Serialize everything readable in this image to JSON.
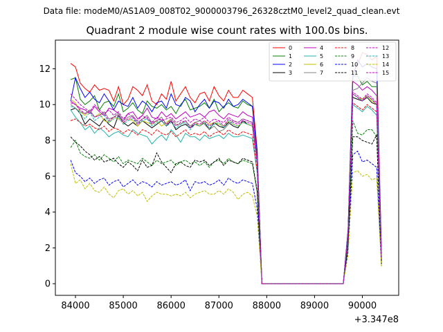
{
  "figure": {
    "suptitle": "Data file: modeM0/AS1A09_008T02_9000003796_26328cztM0_level2_quad_clean.evt",
    "title": "Quadrant 2 module wise count rates with 100.0s bins.",
    "offset_text": "+3.347e8"
  },
  "chart_data": {
    "type": "line",
    "title": "Quadrant 2 module wise count rates with 100.0s bins.",
    "xlabel": "",
    "ylabel": "",
    "x_offset": 334700000,
    "xlim": [
      83580,
      90760
    ],
    "ylim": [
      -0.65,
      13.6
    ],
    "xticks": [
      84000,
      85000,
      86000,
      87000,
      88000,
      89000,
      90000
    ],
    "yticks": [
      0,
      2,
      4,
      6,
      8,
      10,
      12
    ],
    "grid": false,
    "legend": {
      "placement": "top-right",
      "columns": 4
    },
    "x": [
      83900,
      84000,
      84100,
      84200,
      84300,
      84400,
      84500,
      84600,
      84700,
      84800,
      84900,
      85000,
      85100,
      85200,
      85300,
      85400,
      85500,
      85600,
      85700,
      85800,
      85900,
      86000,
      86100,
      86200,
      86300,
      86400,
      86500,
      86600,
      86700,
      86800,
      86900,
      87000,
      87100,
      87200,
      87300,
      87400,
      87500,
      87600,
      87700,
      87800,
      87900,
      88000,
      88100,
      88200,
      88300,
      88400,
      88500,
      88600,
      88700,
      88800,
      88900,
      89000,
      89100,
      89200,
      89300,
      89400,
      89500,
      89600,
      89700,
      89800,
      89900,
      90000,
      90100,
      90200,
      90300,
      90400
    ],
    "series": [
      {
        "name": "0",
        "color": "#ff0000",
        "dash": false,
        "values": [
          12.3,
          12.1,
          11.2,
          10.9,
          10.7,
          11.1,
          10.8,
          10.9,
          10.8,
          10.2,
          11.0,
          10.0,
          10.3,
          11.0,
          10.8,
          10.5,
          11.1,
          10.2,
          10.0,
          10.6,
          10.3,
          11.3,
          10.2,
          10.6,
          11.0,
          10.4,
          10.1,
          10.6,
          10.7,
          10.2,
          11.0,
          10.5,
          10.2,
          10.8,
          10.4,
          10.4,
          10.8,
          10.6,
          10.4,
          7.5,
          0,
          0,
          0,
          0,
          0,
          0,
          0,
          0,
          0,
          0,
          0,
          0,
          0,
          0,
          0,
          0,
          0,
          0,
          3,
          11.8,
          12.2,
          12.9,
          12.8,
          12.5,
          12.7,
          1.8
        ]
      },
      {
        "name": "1",
        "color": "#008000",
        "dash": false,
        "values": [
          11.4,
          11.5,
          10.3,
          10.0,
          10.2,
          10.5,
          9.7,
          10.1,
          10.2,
          9.9,
          10.6,
          9.6,
          9.8,
          10.1,
          9.7,
          9.5,
          10.2,
          9.9,
          9.8,
          10.0,
          9.7,
          9.9,
          9.5,
          10.0,
          10.3,
          9.7,
          9.8,
          9.9,
          10.1,
          9.8,
          10.3,
          9.6,
          9.9,
          10.1,
          9.9,
          9.8,
          10.2,
          10.0,
          9.9,
          7.3,
          0,
          0,
          0,
          0,
          0,
          0,
          0,
          0,
          0,
          0,
          0,
          0,
          0,
          0,
          0,
          0,
          0,
          0,
          2.9,
          11.6,
          11.6,
          11.1,
          11.3,
          11.0,
          11.0,
          1.5
        ]
      },
      {
        "name": "2",
        "color": "#0000ff",
        "dash": false,
        "values": [
          10.2,
          11.5,
          10.9,
          10.4,
          10.7,
          10.3,
          10.1,
          10.6,
          10.2,
          9.7,
          10.2,
          10.0,
          9.9,
          10.4,
          9.8,
          10.2,
          10.0,
          9.6,
          10.1,
          10.2,
          9.8,
          10.6,
          10.0,
          9.9,
          10.4,
          10.2,
          9.6,
          10.0,
          10.3,
          9.8,
          10.2,
          10.1,
          9.8,
          10.3,
          9.9,
          10.0,
          10.3,
          10.1,
          9.9,
          7.4,
          0,
          0,
          0,
          0,
          0,
          0,
          0,
          0,
          0,
          0,
          0,
          0,
          0,
          0,
          0,
          0,
          0,
          0,
          3.0,
          11.5,
          12.5,
          12.1,
          12.3,
          12.1,
          12.0,
          1.7
        ]
      },
      {
        "name": "3",
        "color": "#000000",
        "dash": false,
        "values": [
          9.7,
          9.8,
          9.5,
          8.9,
          9.2,
          9.0,
          8.8,
          9.2,
          8.9,
          8.7,
          9.4,
          9.0,
          8.8,
          9.0,
          8.8,
          9.1,
          8.9,
          8.7,
          8.9,
          9.1,
          8.8,
          9.1,
          8.6,
          8.8,
          8.9,
          8.7,
          8.9,
          8.8,
          9.0,
          8.6,
          9.0,
          8.8,
          8.7,
          9.0,
          8.8,
          8.7,
          9.1,
          8.9,
          8.8,
          6.8,
          0,
          0,
          0,
          0,
          0,
          0,
          0,
          0,
          0,
          0,
          0,
          0,
          0,
          0,
          0,
          0,
          0,
          0,
          2.7,
          10.4,
          10.3,
          10.2,
          10.4,
          10.1,
          10.0,
          1.4
        ]
      },
      {
        "name": "4",
        "color": "#bf00bf",
        "dash": false,
        "values": [
          10.2,
          10.0,
          9.8,
          9.7,
          9.5,
          9.9,
          9.6,
          9.4,
          9.8,
          9.7,
          9.5,
          9.1,
          9.5,
          9.6,
          9.2,
          9.4,
          9.8,
          9.3,
          9.2,
          9.6,
          9.3,
          9.5,
          9.2,
          9.4,
          9.6,
          9.3,
          9.4,
          9.5,
          9.3,
          9.6,
          9.7,
          9.4,
          9.2,
          9.5,
          9.4,
          9.3,
          9.6,
          9.4,
          9.3,
          7.0,
          0,
          0,
          0,
          0,
          0,
          0,
          0,
          0,
          0,
          0,
          0,
          0,
          0,
          0,
          0,
          0,
          0,
          0,
          2.8,
          11.3,
          11.1,
          10.8,
          11.0,
          10.8,
          10.5,
          1.5
        ]
      },
      {
        "name": "5",
        "color": "#20b2aa",
        "dash": false,
        "values": [
          9.7,
          9.3,
          9.0,
          8.6,
          8.8,
          8.4,
          8.7,
          8.5,
          8.2,
          8.4,
          8.5,
          8.3,
          8.2,
          8.6,
          8.4,
          8.3,
          8.2,
          7.8,
          8.1,
          8.3,
          8.0,
          8.6,
          8.3,
          7.9,
          8.4,
          8.2,
          8.2,
          8.0,
          8.3,
          8.1,
          8.2,
          8.3,
          8.1,
          8.4,
          8.2,
          8.2,
          8.3,
          8.2,
          8.1,
          6.2,
          0,
          0,
          0,
          0,
          0,
          0,
          0,
          0,
          0,
          0,
          0,
          0,
          0,
          0,
          0,
          0,
          0,
          0,
          2.5,
          10.0,
          9.8,
          9.6,
          9.9,
          9.7,
          9.4,
          1.3
        ]
      },
      {
        "name": "6",
        "color": "#bfbf00",
        "dash": false,
        "values": [
          10.3,
          10.1,
          9.6,
          9.4,
          9.7,
          9.3,
          9.5,
          9.1,
          9.0,
          9.3,
          9.2,
          9.0,
          9.2,
          9.1,
          8.8,
          9.1,
          9.0,
          8.9,
          9.1,
          8.8,
          9.0,
          9.2,
          8.9,
          8.9,
          9.1,
          8.8,
          9.0,
          8.8,
          9.1,
          8.9,
          9.0,
          8.9,
          8.8,
          9.1,
          8.9,
          8.8,
          9.0,
          8.9,
          8.8,
          6.7,
          0,
          0,
          0,
          0,
          0,
          0,
          0,
          0,
          0,
          0,
          0,
          0,
          0,
          0,
          0,
          0,
          0,
          0,
          2.7,
          10.6,
          10.4,
          10.3,
          10.5,
          10.2,
          10.0,
          1.4
        ]
      },
      {
        "name": "7",
        "color": "#808080",
        "dash": false,
        "values": [
          10.0,
          9.8,
          9.6,
          9.5,
          9.7,
          9.3,
          9.4,
          9.6,
          9.2,
          9.3,
          9.5,
          9.1,
          9.3,
          9.4,
          9.0,
          9.2,
          9.4,
          9.0,
          9.1,
          9.3,
          8.9,
          9.2,
          8.9,
          8.9,
          9.1,
          8.8,
          9.0,
          9.1,
          8.9,
          8.6,
          8.8,
          8.5,
          8.6,
          8.9,
          9.1,
          9.0,
          9.2,
          9.1,
          9.0,
          6.9,
          0,
          0,
          0,
          0,
          0,
          0,
          0,
          0,
          0,
          0,
          0,
          0,
          0,
          0,
          0,
          0,
          0,
          0,
          2.8,
          10.8,
          10.9,
          11.2,
          11.5,
          11.3,
          11.2,
          1.6
        ]
      },
      {
        "name": "8",
        "color": "#ff0000",
        "dash": true,
        "values": [
          9.1,
          9.2,
          9.0,
          8.8,
          8.9,
          8.7,
          8.6,
          8.8,
          8.5,
          8.7,
          8.6,
          8.4,
          8.6,
          8.5,
          8.3,
          8.6,
          8.5,
          8.3,
          8.6,
          8.4,
          8.3,
          8.5,
          8.2,
          8.4,
          8.6,
          8.3,
          8.4,
          8.3,
          8.5,
          8.2,
          8.4,
          8.5,
          8.3,
          8.6,
          8.4,
          8.3,
          8.5,
          8.4,
          8.3,
          6.3,
          0,
          0,
          0,
          0,
          0,
          0,
          0,
          0,
          0,
          0,
          0,
          0,
          0,
          0,
          0,
          0,
          0,
          0,
          2.6,
          10.1,
          9.9,
          9.7,
          10.0,
          9.8,
          9.6,
          1.3
        ]
      },
      {
        "name": "9",
        "color": "#008000",
        "dash": true,
        "values": [
          7.6,
          8.0,
          7.3,
          7.1,
          7.0,
          7.2,
          6.9,
          7.2,
          7.0,
          6.8,
          7.1,
          6.7,
          6.9,
          6.8,
          6.7,
          7.0,
          6.8,
          6.6,
          6.9,
          6.7,
          6.8,
          6.9,
          6.6,
          6.8,
          6.9,
          6.7,
          6.8,
          6.6,
          6.8,
          6.5,
          6.8,
          6.9,
          6.7,
          7.0,
          6.8,
          6.7,
          6.9,
          6.8,
          6.7,
          5.1,
          0,
          0,
          0,
          0,
          0,
          0,
          0,
          0,
          0,
          0,
          0,
          0,
          0,
          0,
          0,
          0,
          0,
          0,
          2.1,
          9.1,
          8.4,
          8.3,
          8.6,
          8.6,
          8.2,
          1.1
        ]
      },
      {
        "name": "10",
        "color": "#0000ff",
        "dash": true,
        "values": [
          6.9,
          6.2,
          6.0,
          5.7,
          5.9,
          5.6,
          5.8,
          5.9,
          5.5,
          5.7,
          5.8,
          5.4,
          5.6,
          5.8,
          5.5,
          5.7,
          5.6,
          5.4,
          5.7,
          5.5,
          5.6,
          5.7,
          5.5,
          5.6,
          5.8,
          5.2,
          5.7,
          5.6,
          5.7,
          5.5,
          5.6,
          5.8,
          5.5,
          5.9,
          5.7,
          5.6,
          5.8,
          5.7,
          5.6,
          4.2,
          0,
          0,
          0,
          0,
          0,
          0,
          0,
          0,
          0,
          0,
          0,
          0,
          0,
          0,
          0,
          0,
          0,
          0,
          1.8,
          7.2,
          7.4,
          6.8,
          6.9,
          6.7,
          6.5,
          1.0
        ]
      },
      {
        "name": "11",
        "color": "#000000",
        "dash": true,
        "values": [
          8.2,
          7.9,
          7.7,
          7.4,
          7.2,
          6.9,
          7.1,
          6.8,
          6.9,
          7.0,
          6.7,
          6.5,
          6.8,
          6.6,
          6.3,
          6.9,
          6.5,
          6.6,
          7.3,
          6.8,
          6.5,
          6.2,
          6.7,
          6.8,
          6.6,
          6.5,
          6.9,
          6.8,
          6.9,
          6.6,
          6.8,
          7.0,
          6.6,
          6.9,
          6.8,
          6.7,
          7.0,
          6.9,
          6.8,
          5.2,
          0,
          0,
          0,
          0,
          0,
          0,
          0,
          0,
          0,
          0,
          0,
          0,
          0,
          0,
          0,
          0,
          0,
          0,
          2.1,
          8.2,
          8.2,
          8.0,
          7.9,
          7.8,
          8.3,
          1.1
        ]
      },
      {
        "name": "12",
        "color": "#bf00bf",
        "dash": true,
        "values": [
          10.6,
          10.3,
          10.0,
          9.8,
          9.6,
          10.0,
          9.7,
          9.5,
          9.7,
          9.4,
          9.6,
          9.2,
          9.5,
          9.3,
          9.1,
          9.4,
          9.2,
          9.0,
          9.3,
          9.1,
          9.2,
          9.3,
          9.0,
          9.1,
          9.3,
          9.0,
          9.2,
          9.1,
          9.3,
          9.0,
          9.2,
          9.1,
          9.0,
          9.3,
          9.1,
          9.0,
          9.2,
          9.1,
          9.0,
          6.8,
          0,
          0,
          0,
          0,
          0,
          0,
          0,
          0,
          0,
          0,
          0,
          0,
          0,
          0,
          0,
          0,
          0,
          0,
          2.7,
          10.7,
          10.5,
          10.3,
          10.6,
          10.4,
          10.1,
          1.4
        ]
      },
      {
        "name": "13",
        "color": "#20b2aa",
        "dash": true,
        "values": [
          9.9,
          9.8,
          9.5,
          9.2,
          9.6,
          9.1,
          9.3,
          9.4,
          9.0,
          9.2,
          9.3,
          8.9,
          9.1,
          9.2,
          8.9,
          9.1,
          9.2,
          8.8,
          9.0,
          9.1,
          8.8,
          9.0,
          8.7,
          8.9,
          9.0,
          8.6,
          8.9,
          8.8,
          9.0,
          8.7,
          8.9,
          9.0,
          8.7,
          9.1,
          8.9,
          8.8,
          9.0,
          8.9,
          8.8,
          6.7,
          0,
          0,
          0,
          0,
          0,
          0,
          0,
          0,
          0,
          0,
          0,
          0,
          0,
          0,
          0,
          0,
          0,
          0,
          2.7,
          10.6,
          10.4,
          10.2,
          10.5,
          10.3,
          10.0,
          1.4
        ]
      },
      {
        "name": "14",
        "color": "#bfbf00",
        "dash": true,
        "values": [
          6.7,
          5.6,
          5.8,
          5.3,
          5.6,
          5.2,
          5.1,
          5.4,
          5.0,
          4.8,
          5.2,
          5.3,
          5.0,
          5.2,
          4.9,
          5.1,
          4.6,
          4.9,
          5.1,
          5.0,
          5.0,
          4.9,
          5.0,
          4.9,
          5.1,
          4.8,
          5.0,
          5.1,
          5.2,
          5.0,
          5.0,
          5.2,
          5.0,
          5.3,
          5.1,
          4.7,
          5.0,
          5.1,
          4.9,
          3.8,
          0,
          0,
          0,
          0,
          0,
          0,
          0,
          0,
          0,
          0,
          0,
          0,
          0,
          0,
          0,
          0,
          0,
          0,
          1.6,
          6.2,
          6.3,
          6.0,
          6.1,
          5.8,
          5.9,
          0.9
        ]
      },
      {
        "name": "15",
        "color": "#bf00bf",
        "dash": true,
        "values": [
          10.1,
          10.0,
          9.7,
          9.5,
          9.6,
          9.3,
          9.4,
          9.5,
          9.1,
          9.3,
          9.4,
          9.0,
          9.2,
          9.3,
          8.9,
          9.2,
          9.3,
          8.9,
          9.1,
          9.2,
          8.9,
          9.1,
          8.8,
          9.0,
          9.1,
          8.7,
          9.0,
          8.9,
          9.1,
          8.8,
          9.0,
          9.1,
          8.8,
          9.2,
          9.0,
          8.9,
          9.1,
          9.0,
          8.9,
          6.7,
          0,
          0,
          0,
          0,
          0,
          0,
          0,
          0,
          0,
          0,
          0,
          0,
          0,
          0,
          0,
          0,
          0,
          0,
          2.7,
          10.6,
          10.4,
          10.2,
          10.5,
          10.3,
          10.0,
          1.4
        ]
      }
    ]
  }
}
